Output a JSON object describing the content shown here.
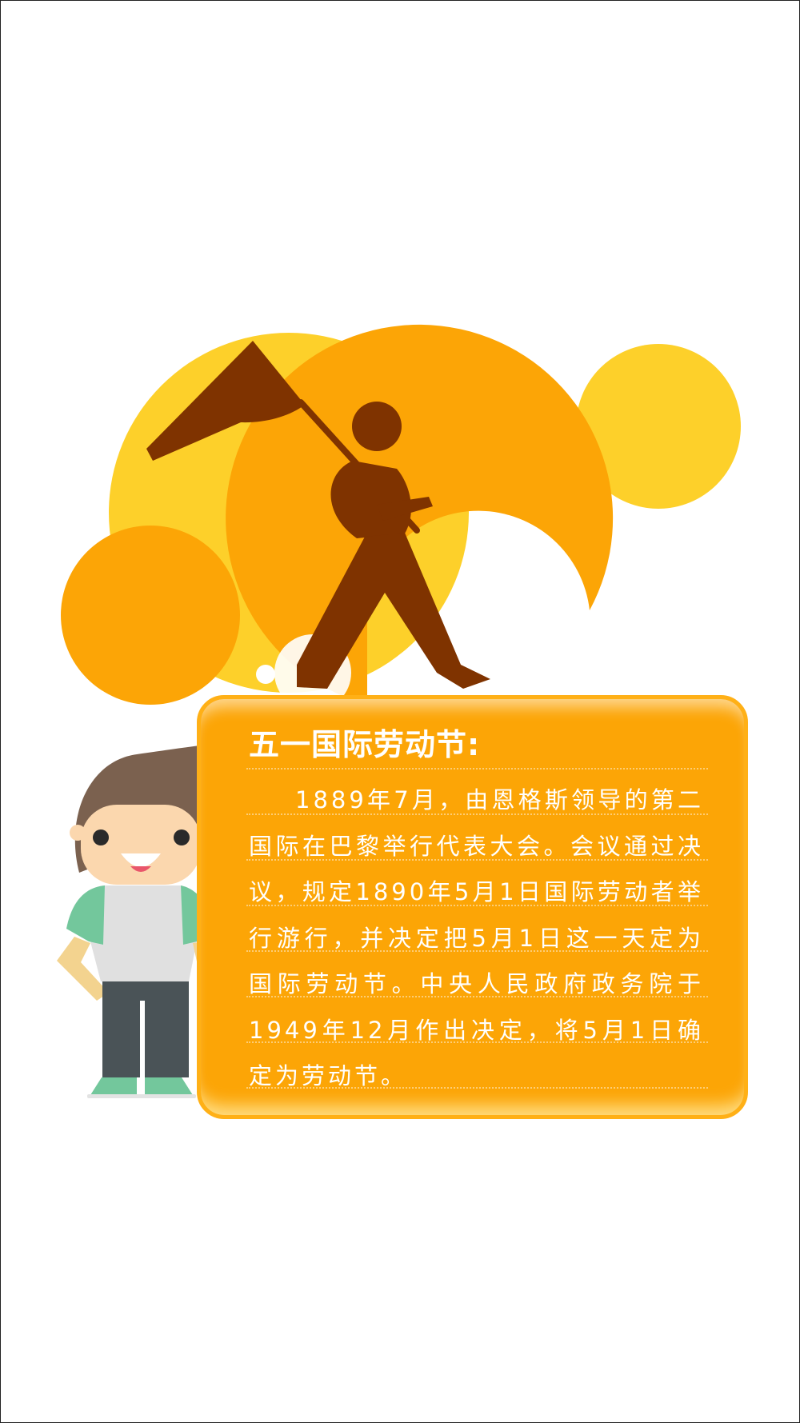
{
  "card": {
    "title": "五一国际劳动节:",
    "body": "1889年7月，由恩格斯领导的第二国际在巴黎举行代表大会。会议通过决议，规定1890年5月1日国际劳动者举行游行，并决定把5月1日这一天定为国际劳动节。中央人民政府政务院于1949年12月作出决定，将5月1日确定为劳动节。"
  },
  "colors": {
    "orange": "#fca506",
    "yellow": "#fdd02a",
    "flag_brown": "#7f3300",
    "boy_shirt_sleeve": "#73c79c",
    "boy_pants": "#4a5357"
  },
  "icons": [
    "flag-bearer-silhouette",
    "boy-character"
  ]
}
